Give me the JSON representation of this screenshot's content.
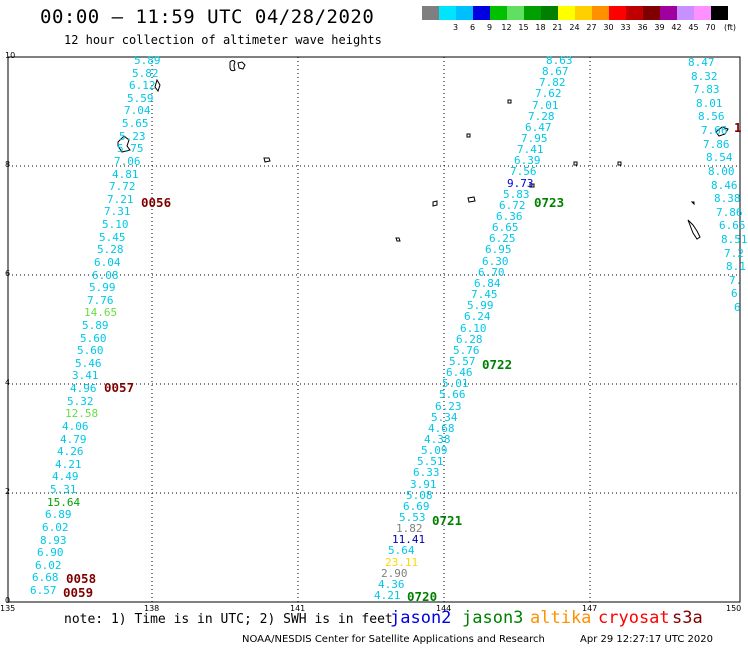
{
  "header": {
    "title": "00:00 – 11:59 UTC 04/28/2020",
    "subtitle": "12 hour collection of altimeter wave heights"
  },
  "colorbar": {
    "unit": "(ft)",
    "levels": [
      {
        "label": "",
        "color": "#7f7f7f"
      },
      {
        "label": "3",
        "color": "#00e5ff"
      },
      {
        "label": "6",
        "color": "#00bfff"
      },
      {
        "label": "9",
        "color": "#0000e0"
      },
      {
        "label": "12",
        "color": "#00c000"
      },
      {
        "label": "15",
        "color": "#60e060"
      },
      {
        "label": "18",
        "color": "#00a000"
      },
      {
        "label": "21",
        "color": "#008000"
      },
      {
        "label": "24",
        "color": "#ffff00"
      },
      {
        "label": "27",
        "color": "#ffd000"
      },
      {
        "label": "30",
        "color": "#ff9000"
      },
      {
        "label": "33",
        "color": "#ff0000"
      },
      {
        "label": "36",
        "color": "#c00000"
      },
      {
        "label": "39",
        "color": "#800000"
      },
      {
        "label": "42",
        "color": "#a000a0"
      },
      {
        "label": "45",
        "color": "#c890ff"
      },
      {
        "label": "70",
        "color": "#ff90ff"
      },
      {
        "label": "",
        "color": "#000000"
      }
    ]
  },
  "axes": {
    "x_ticks": [
      "135",
      "138",
      "141",
      "144",
      "147",
      "150"
    ],
    "y_ticks": [
      "0",
      "2",
      "4",
      "6",
      "8",
      "10"
    ]
  },
  "tracks": [
    {
      "label": "track-a",
      "values": [
        {
          "t": "5.89",
          "c": "#00c8e6"
        },
        {
          "t": "5.82",
          "c": "#00c8e6"
        },
        {
          "t": "6.12",
          "c": "#00c8e6"
        },
        {
          "t": "5.59",
          "c": "#00c8e6"
        },
        {
          "t": "7.04",
          "c": "#00c8e6"
        },
        {
          "t": "5.65",
          "c": "#00c8e6"
        },
        {
          "t": "5.23",
          "c": "#00c8e6"
        },
        {
          "t": "5.75",
          "c": "#00c8e6"
        },
        {
          "t": "7.06",
          "c": "#00c8e6"
        },
        {
          "t": "4.81",
          "c": "#00c8e6"
        },
        {
          "t": "7.72",
          "c": "#00c8e6"
        },
        {
          "t": "7.21",
          "c": "#00c8e6"
        },
        {
          "t": "7.31",
          "c": "#00c8e6"
        },
        {
          "t": "5.10",
          "c": "#00c8e6"
        },
        {
          "t": "5.45",
          "c": "#00c8e6"
        },
        {
          "t": "5.28",
          "c": "#00c8e6"
        },
        {
          "t": "6.04",
          "c": "#00c8e6"
        },
        {
          "t": "6.08",
          "c": "#00c8e6"
        },
        {
          "t": "5.99",
          "c": "#00c8e6"
        },
        {
          "t": "7.76",
          "c": "#00c8e6"
        },
        {
          "t": "14.65",
          "c": "#66dd44"
        },
        {
          "t": "5.89",
          "c": "#00c8e6"
        },
        {
          "t": "5.60",
          "c": "#00c8e6"
        },
        {
          "t": "5.60",
          "c": "#00c8e6"
        },
        {
          "t": "5.46",
          "c": "#00c8e6"
        },
        {
          "t": "3.41",
          "c": "#00c8e6"
        },
        {
          "t": "4.96",
          "c": "#00c8e6"
        },
        {
          "t": "5.32",
          "c": "#00c8e6"
        },
        {
          "t": "12.58",
          "c": "#66dd44"
        },
        {
          "t": "4.06",
          "c": "#00c8e6"
        },
        {
          "t": "4.79",
          "c": "#00c8e6"
        },
        {
          "t": "4.26",
          "c": "#00c8e6"
        },
        {
          "t": "4.21",
          "c": "#00c8e6"
        },
        {
          "t": "4.49",
          "c": "#00c8e6"
        },
        {
          "t": "5.31",
          "c": "#00c8e6"
        },
        {
          "t": "15.64",
          "c": "#00a000"
        },
        {
          "t": "6.89",
          "c": "#00c8e6"
        },
        {
          "t": "6.02",
          "c": "#00c8e6"
        },
        {
          "t": "8.93",
          "c": "#00c8e6"
        },
        {
          "t": "6.90",
          "c": "#00c8e6"
        },
        {
          "t": "6.02",
          "c": "#00c8e6"
        },
        {
          "t": "6.68",
          "c": "#00c8e6"
        },
        {
          "t": "6.57",
          "c": "#00c8e6"
        }
      ]
    },
    {
      "label": "track-b",
      "values": [
        {
          "t": "8.63",
          "c": "#00c8e6"
        },
        {
          "t": "8.67",
          "c": "#00c8e6"
        },
        {
          "t": "7.82",
          "c": "#00c8e6"
        },
        {
          "t": "7.62",
          "c": "#00c8e6"
        },
        {
          "t": "7.01",
          "c": "#00c8e6"
        },
        {
          "t": "7.28",
          "c": "#00c8e6"
        },
        {
          "t": "6.47",
          "c": "#00c8e6"
        },
        {
          "t": "7.95",
          "c": "#00c8e6"
        },
        {
          "t": "7.41",
          "c": "#00c8e6"
        },
        {
          "t": "6.39",
          "c": "#00c8e6"
        },
        {
          "t": "7.56",
          "c": "#00c8e6"
        },
        {
          "t": "9.73",
          "c": "#0000e0"
        },
        {
          "t": "5.83",
          "c": "#00c8e6"
        },
        {
          "t": "6.72",
          "c": "#00c8e6"
        },
        {
          "t": "6.36",
          "c": "#00c8e6"
        },
        {
          "t": "6.65",
          "c": "#00c8e6"
        },
        {
          "t": "6.25",
          "c": "#00c8e6"
        },
        {
          "t": "6.95",
          "c": "#00c8e6"
        },
        {
          "t": "6.30",
          "c": "#00c8e6"
        },
        {
          "t": "6.70",
          "c": "#00c8e6"
        },
        {
          "t": "6.84",
          "c": "#00c8e6"
        },
        {
          "t": "7.45",
          "c": "#00c8e6"
        },
        {
          "t": "5.99",
          "c": "#00c8e6"
        },
        {
          "t": "6.24",
          "c": "#00c8e6"
        },
        {
          "t": "6.10",
          "c": "#00c8e6"
        },
        {
          "t": "6.28",
          "c": "#00c8e6"
        },
        {
          "t": "5.76",
          "c": "#00c8e6"
        },
        {
          "t": "5.57",
          "c": "#00c8e6"
        },
        {
          "t": "6.46",
          "c": "#00c8e6"
        },
        {
          "t": "5.01",
          "c": "#00c8e6"
        },
        {
          "t": "5.66",
          "c": "#00c8e6"
        },
        {
          "t": "6.23",
          "c": "#00c8e6"
        },
        {
          "t": "5.34",
          "c": "#00c8e6"
        },
        {
          "t": "4.68",
          "c": "#00c8e6"
        },
        {
          "t": "4.38",
          "c": "#00c8e6"
        },
        {
          "t": "5.09",
          "c": "#00c8e6"
        },
        {
          "t": "5.51",
          "c": "#00c8e6"
        },
        {
          "t": "6.33",
          "c": "#00c8e6"
        },
        {
          "t": "3.91",
          "c": "#00c8e6"
        },
        {
          "t": "5.08",
          "c": "#00c8e6"
        },
        {
          "t": "6.69",
          "c": "#00c8e6"
        },
        {
          "t": "5.53",
          "c": "#00c8e6"
        },
        {
          "t": "1.82",
          "c": "#7f7f7f"
        },
        {
          "t": "11.41",
          "c": "#0000b0"
        },
        {
          "t": "5.64",
          "c": "#00c8e6"
        },
        {
          "t": "23.11",
          "c": "#ffd700"
        },
        {
          "t": "2.90",
          "c": "#7f7f7f"
        },
        {
          "t": "4.36",
          "c": "#00c8e6"
        },
        {
          "t": "4.21",
          "c": "#00c8e6"
        }
      ]
    },
    {
      "label": "track-c",
      "values": [
        {
          "t": "8.47",
          "c": "#00c8e6"
        },
        {
          "t": "8.32",
          "c": "#00c8e6"
        },
        {
          "t": "7.83",
          "c": "#00c8e6"
        },
        {
          "t": "8.01",
          "c": "#00c8e6"
        },
        {
          "t": "8.56",
          "c": "#00c8e6"
        },
        {
          "t": "7.66",
          "c": "#00c8e6"
        },
        {
          "t": "7.86",
          "c": "#00c8e6"
        },
        {
          "t": "8.54",
          "c": "#00c8e6"
        },
        {
          "t": "8.00",
          "c": "#00c8e6"
        },
        {
          "t": "8.46",
          "c": "#00c8e6"
        },
        {
          "t": "8.38",
          "c": "#00c8e6"
        },
        {
          "t": "7.86",
          "c": "#00c8e6"
        },
        {
          "t": "6.65",
          "c": "#00c8e6"
        },
        {
          "t": "8.51",
          "c": "#00c8e6"
        },
        {
          "t": "7.2",
          "c": "#00c8e6"
        },
        {
          "t": "8.1",
          "c": "#00c8e6"
        },
        {
          "t": "7.",
          "c": "#00c8e6"
        },
        {
          "t": "6",
          "c": "#00c8e6"
        },
        {
          "t": "6",
          "c": "#00c8e6"
        }
      ]
    }
  ],
  "time_labels": [
    {
      "t": "0056",
      "c": "#800000"
    },
    {
      "t": "0057",
      "c": "#800000"
    },
    {
      "t": "0058",
      "c": "#800000"
    },
    {
      "t": "0059",
      "c": "#800000"
    },
    {
      "t": "0723",
      "c": "#008000"
    },
    {
      "t": "0722",
      "c": "#008000"
    },
    {
      "t": "0721",
      "c": "#008000"
    },
    {
      "t": "0720",
      "c": "#008000"
    },
    {
      "t": "1",
      "c": "#800000"
    }
  ],
  "note": "note:  1) Time is in UTC; 2) SWH is in feet",
  "legend": [
    {
      "name": "jason2",
      "color": "#0000e0"
    },
    {
      "name": "jason3",
      "color": "#008000"
    },
    {
      "name": "altika",
      "color": "#ff9000"
    },
    {
      "name": "cryosat",
      "color": "#ff0000"
    },
    {
      "name": "s3a",
      "color": "#800000"
    }
  ],
  "footer": {
    "left": "NOAA/NESDIS Center for Satellite Applications and Research",
    "right": "Apr 29 12:27:17 UTC 2020"
  }
}
